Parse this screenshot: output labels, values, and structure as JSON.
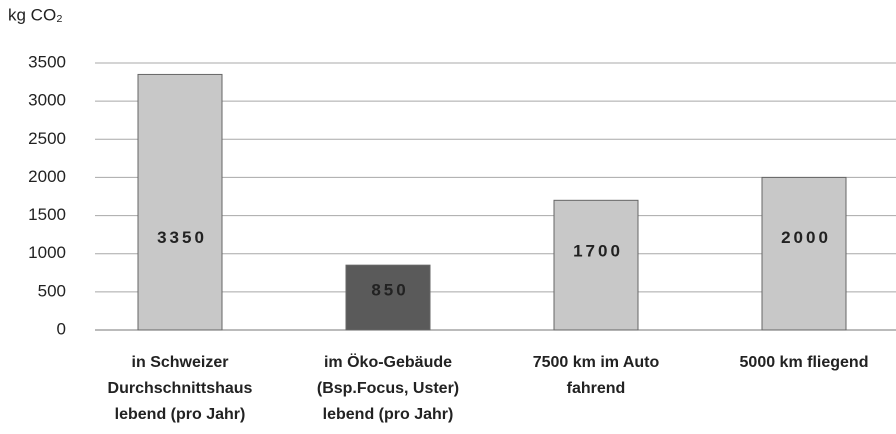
{
  "chart_data": {
    "type": "bar",
    "y_label": "kg CO₂",
    "categories": [
      [
        "in Schweizer",
        "Durchschnittshaus",
        "lebend (pro Jahr)"
      ],
      [
        "im Öko-Gebäude",
        "(Bsp.Focus, Uster)",
        "lebend (pro Jahr)"
      ],
      [
        "7500 km im Auto",
        "fahrend"
      ],
      [
        "5000 km fliegend"
      ]
    ],
    "values": [
      3350,
      850,
      1700,
      2000
    ],
    "colors": [
      "#c8c8c8",
      "#5a5a5a",
      "#c8c8c8",
      "#c8c8c8"
    ],
    "ylim": [
      0,
      3500
    ],
    "yticks": [
      0,
      500,
      1000,
      1500,
      2000,
      2500,
      3000,
      3500
    ],
    "grid": true
  }
}
